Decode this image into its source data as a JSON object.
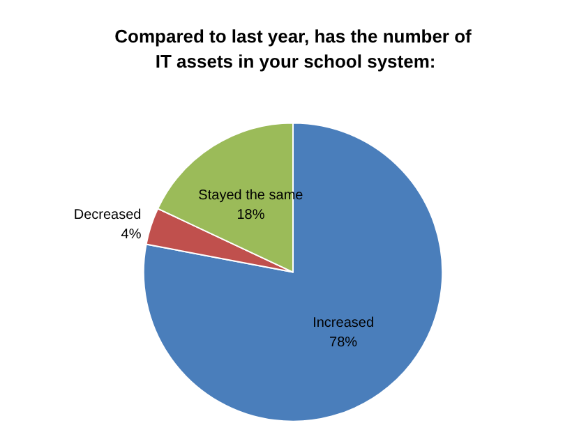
{
  "chart_data": {
    "type": "pie",
    "title": "Compared to last year, has the number of IT assets in your school system:",
    "categories": [
      "Increased",
      "Decreased",
      "Stayed the same"
    ],
    "values": [
      78,
      4,
      18
    ],
    "colors": [
      "#4a7ebb",
      "#c0504d",
      "#9bbb59"
    ],
    "value_labels": [
      "78%",
      "4%",
      "18%"
    ],
    "legend": false
  }
}
